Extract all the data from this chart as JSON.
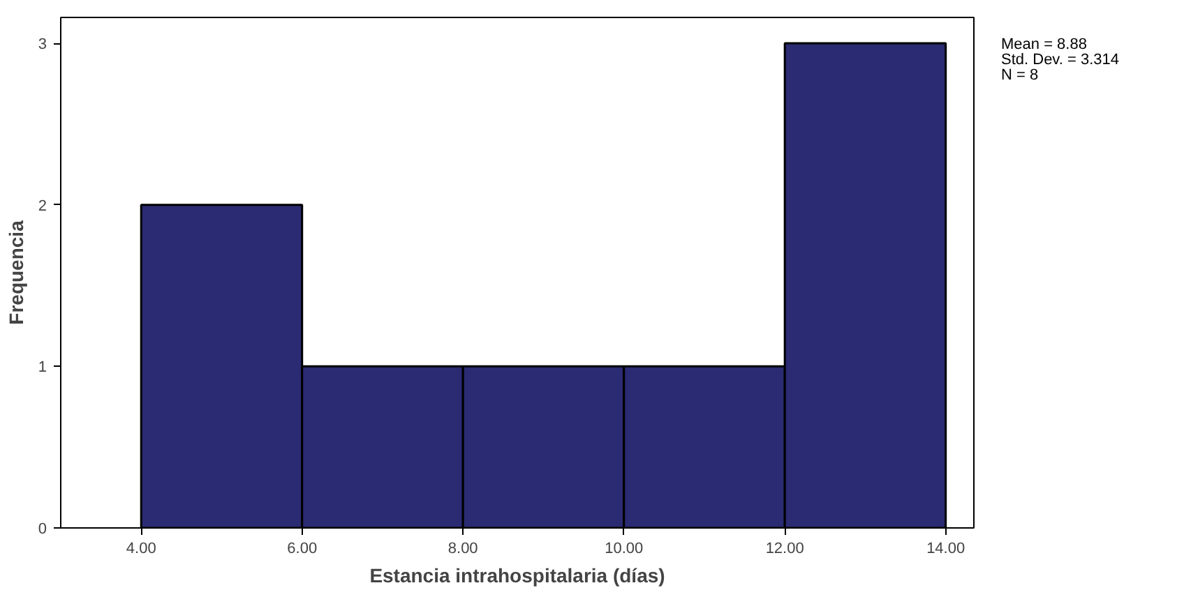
{
  "chart_data": {
    "type": "histogram",
    "xlabel": "Estancia intrahospitalaria (días)",
    "ylabel": "Frequencia",
    "bins": [
      4,
      6,
      8,
      10,
      12,
      14
    ],
    "values": [
      2,
      1,
      1,
      1,
      3
    ],
    "color": "#2a2b72",
    "xlim": [
      3.0,
      14.35
    ],
    "ylim": [
      0,
      3.16
    ],
    "xticks": [
      {
        "value": 4,
        "label": "4.00"
      },
      {
        "value": 6,
        "label": "6.00"
      },
      {
        "value": 8,
        "label": "8.00"
      },
      {
        "value": 10,
        "label": "10.00"
      },
      {
        "value": 12,
        "label": "12.00"
      },
      {
        "value": 14,
        "label": "14.00"
      }
    ],
    "yticks": [
      0,
      1,
      2,
      3
    ],
    "annotations": [
      "Mean = 8.88",
      "Std. Dev. = 3.314",
      "N = 8"
    ],
    "grid": false
  }
}
